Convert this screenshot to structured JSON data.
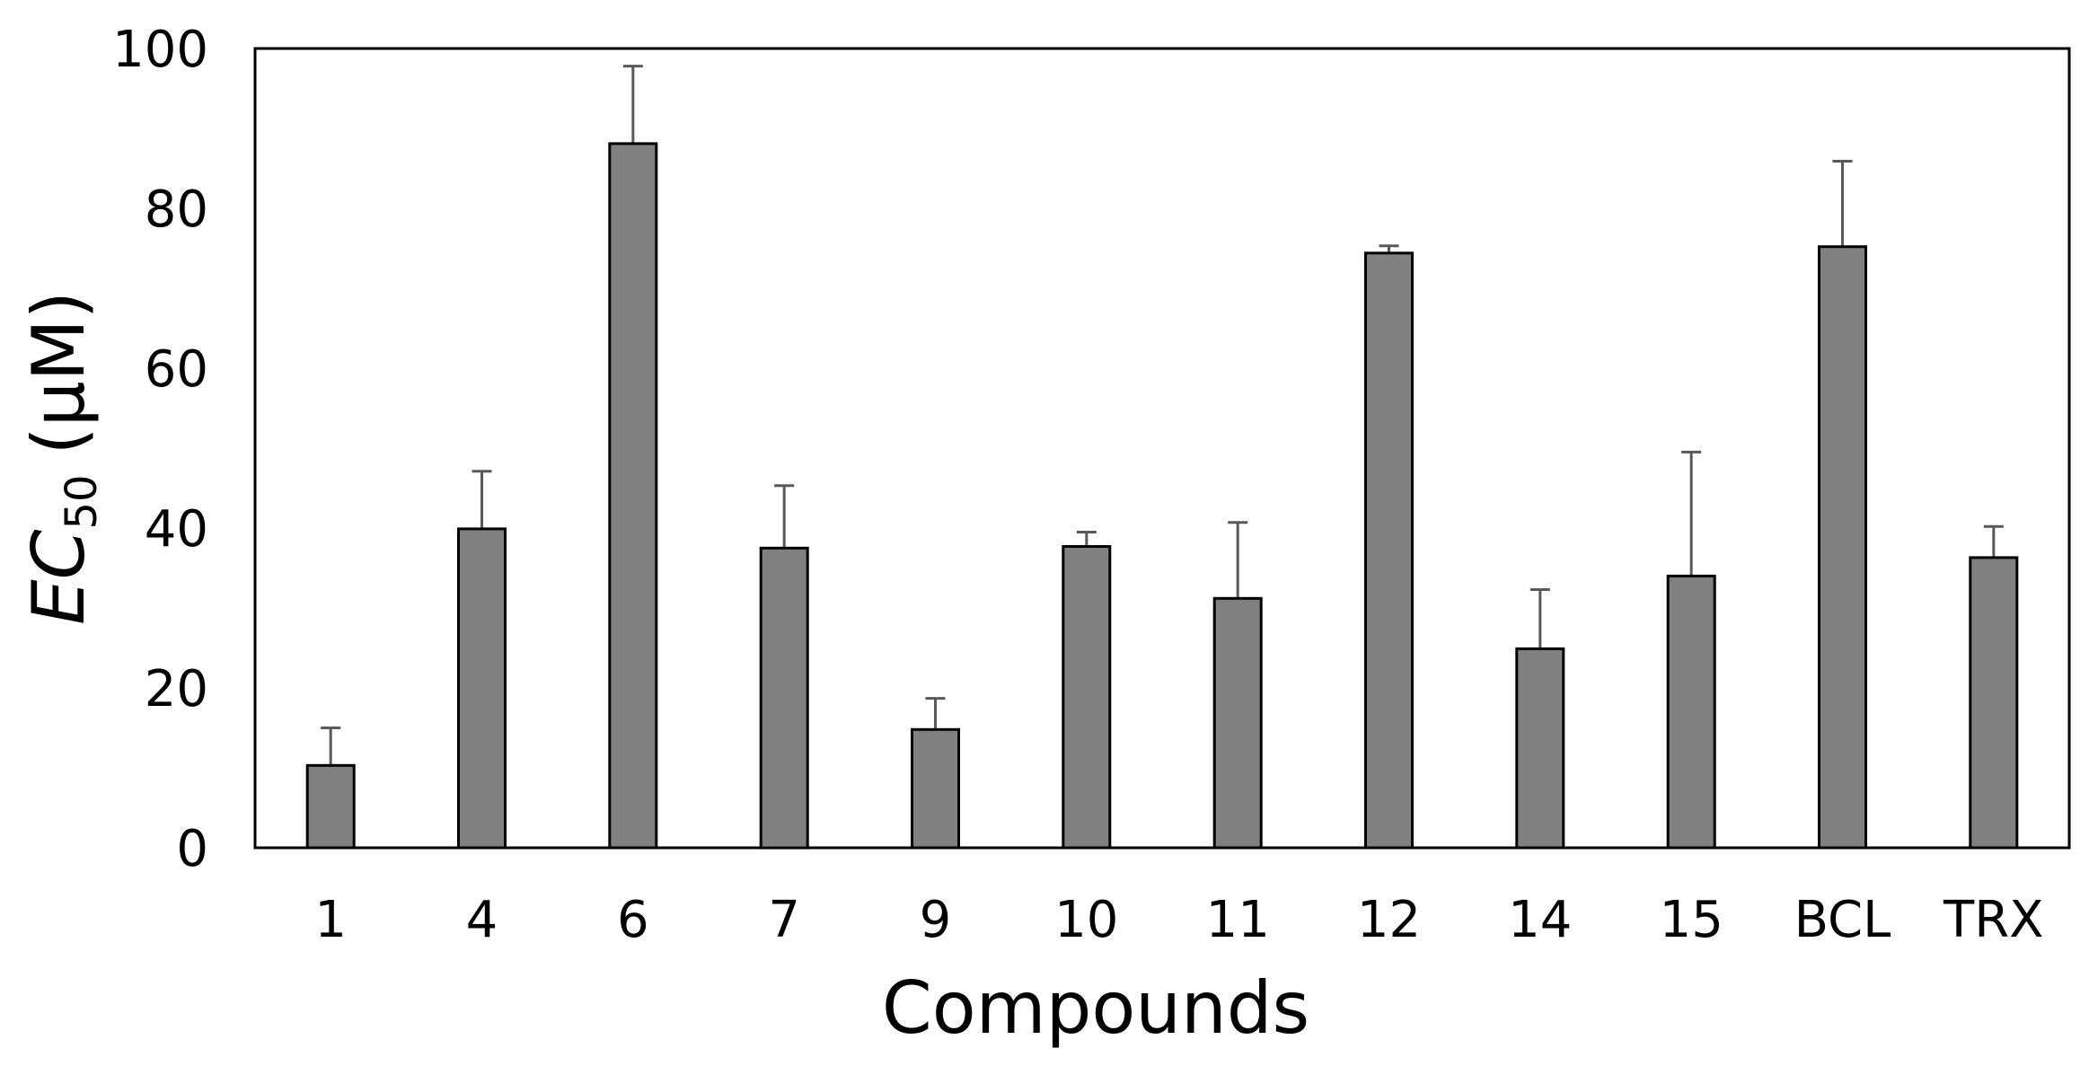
{
  "chart_data": {
    "type": "bar",
    "categories": [
      "1",
      "4",
      "6",
      "7",
      "9",
      "10",
      "11",
      "12",
      "14",
      "15",
      "BCL",
      "TRX"
    ],
    "values": [
      10.3,
      39.9,
      88.1,
      37.5,
      14.8,
      37.7,
      31.2,
      74.4,
      24.9,
      34.0,
      75.2,
      36.3
    ],
    "errors": [
      4.7,
      7.2,
      9.7,
      7.8,
      3.9,
      1.8,
      9.5,
      0.9,
      7.4,
      15.5,
      10.7,
      3.9
    ],
    "xlabel": "Compounds",
    "ylabel": {
      "main": "EC",
      "subscript": "50",
      "unit": "(μM)"
    },
    "ylim": [
      0,
      100
    ],
    "yticks": [
      "0",
      "20",
      "40",
      "60",
      "80",
      "100"
    ],
    "grid": false,
    "legend": false,
    "colors": {
      "bar": "#808080",
      "bar_edge": "#000000",
      "error_bar": "#595959"
    }
  }
}
